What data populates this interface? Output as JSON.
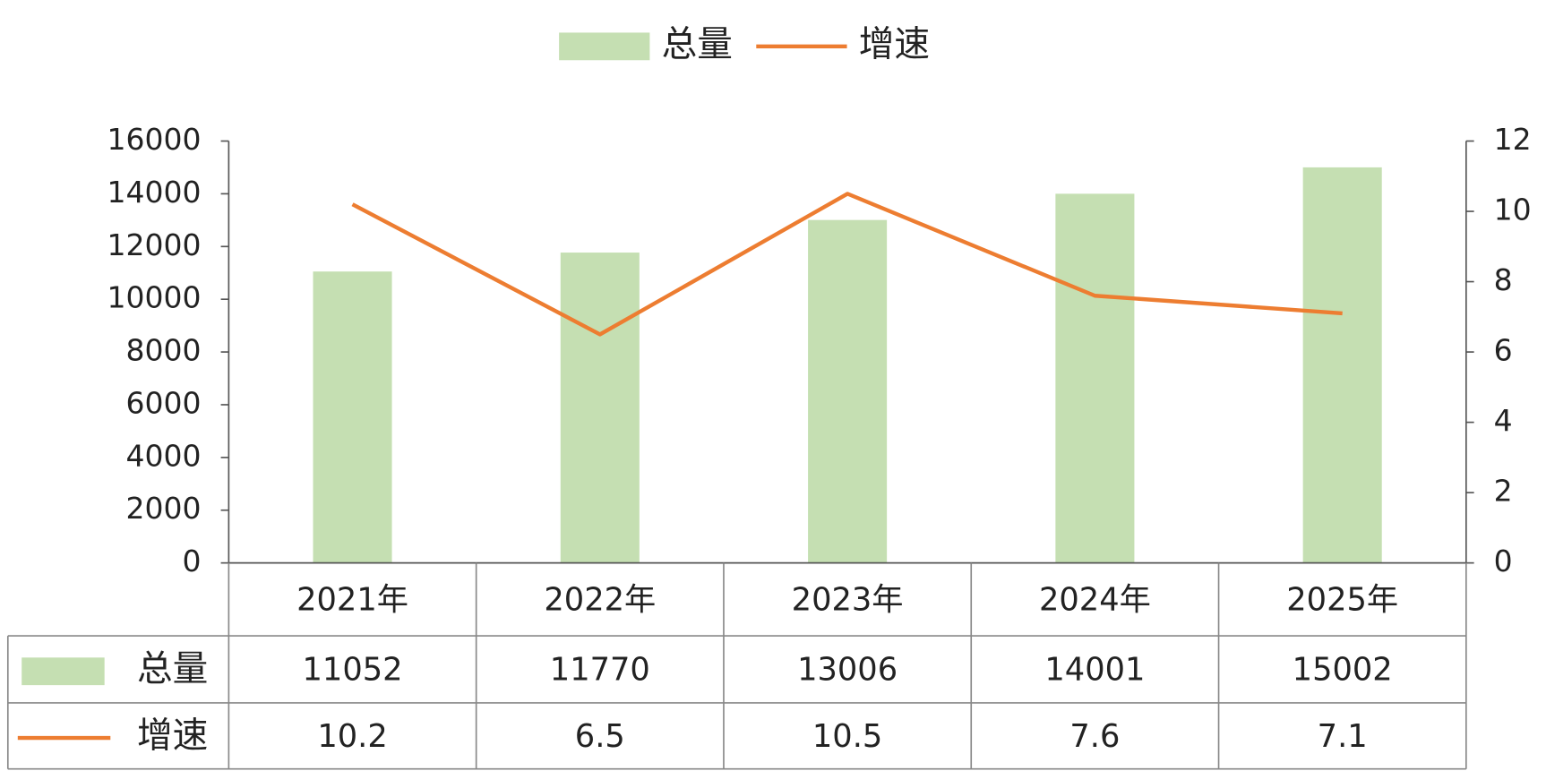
{
  "chart_data": {
    "type": "bar",
    "categories": [
      "2021年",
      "2022年",
      "2023年",
      "2024年",
      "2025年"
    ],
    "series": [
      {
        "name": "总量",
        "type": "bar",
        "color": "#c5dfb2",
        "values": [
          11052,
          11770,
          13006,
          14001,
          15002
        ]
      },
      {
        "name": "增速",
        "type": "line",
        "color": "#ed7d31",
        "axis": "y2",
        "values": [
          10.2,
          6.5,
          10.5,
          7.6,
          7.1
        ]
      }
    ],
    "ylim": [
      0,
      16000
    ],
    "yticks": [
      0,
      2000,
      4000,
      6000,
      8000,
      10000,
      12000,
      14000,
      16000
    ],
    "y2lim": [
      0,
      12
    ],
    "y2ticks": [
      0,
      2,
      4,
      6,
      8,
      10,
      12
    ],
    "legend": "top",
    "data_table": true
  }
}
